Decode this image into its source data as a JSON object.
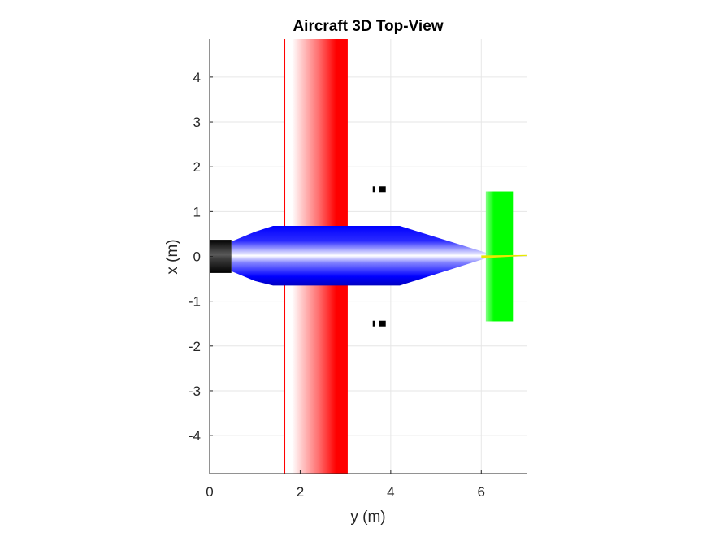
{
  "chart_data": {
    "type": "other",
    "title": "Aircraft 3D Top-View",
    "xlabel": "y (m)",
    "ylabel": "x (m)",
    "xlim": [
      0,
      7
    ],
    "ylim": [
      -4.85,
      4.85
    ],
    "xticks": [
      0,
      2,
      4,
      6
    ],
    "xtick_labels": [
      "0",
      "2",
      "4",
      "6"
    ],
    "yticks": [
      -4,
      -3,
      -2,
      -1,
      0,
      1,
      2,
      3,
      4
    ],
    "ytick_labels": [
      "-4",
      "-3",
      "-2",
      "-1",
      "0",
      "1",
      "2",
      "3",
      "4"
    ],
    "grid": true,
    "components": {
      "fuselage": {
        "color": "#0000ff",
        "highlight": "#ffffff",
        "outline_y": [
          0.48,
          1.0,
          1.4,
          4.2,
          6.3,
          4.2,
          1.4,
          1.0,
          0.48
        ],
        "outline_x": [
          0.33,
          0.55,
          0.68,
          0.68,
          0.02,
          -0.65,
          -0.65,
          -0.55,
          -0.33
        ]
      },
      "spinner": {
        "color": "#000000",
        "y_range": [
          0,
          0.48
        ],
        "x_range": [
          -0.37,
          0.37
        ]
      },
      "wing": {
        "color": "#ff0000",
        "y_range": [
          1.65,
          3.05
        ],
        "x_range": [
          -4.85,
          4.85
        ]
      },
      "horizontal_tail": {
        "color": "#00ff00",
        "y_range": [
          6.1,
          6.7
        ],
        "x_range": [
          -1.45,
          1.45
        ]
      },
      "vertical_tail": {
        "color": "#e8e800",
        "y_range": [
          6.0,
          7.0
        ],
        "x_range": [
          -0.04,
          0.04
        ]
      },
      "small_parts": [
        {
          "name": "upper-marker",
          "y": 3.8,
          "x": 1.5,
          "color": "#000000"
        },
        {
          "name": "lower-marker",
          "y": 3.8,
          "x": -1.5,
          "color": "#000000"
        }
      ]
    }
  }
}
